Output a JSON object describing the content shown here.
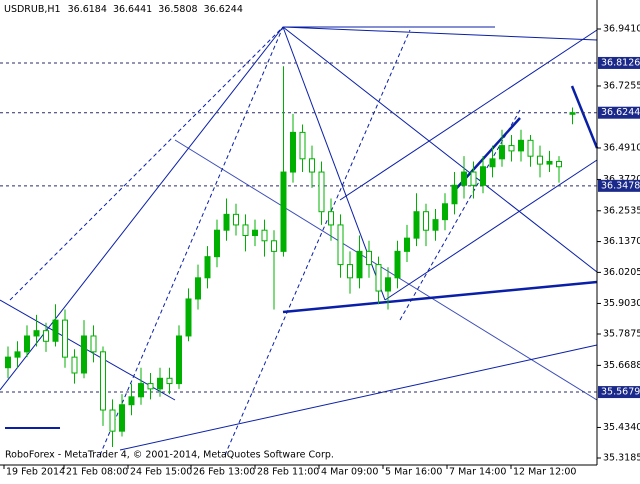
{
  "chart_data": {
    "type": "candlestick",
    "symbol": "USDRUB,H1",
    "quote": [
      36.6184,
      36.6441,
      36.5808,
      36.6244
    ],
    "footer": "RoboForex - MetaTrader 4, © 2001-2014, MetaQuotes Software Corp.",
    "categories": [
      "19 Feb 2014",
      "21 Feb 08:00",
      "24 Feb 15:00",
      "26 Feb 13:00",
      "28 Feb 11:00",
      "4 Mar 09:00",
      "5 Mar 16:00",
      "7 Mar 14:00",
      "12 Mar 12:00"
    ],
    "ylim": [
      35.3185,
      36.941
    ],
    "yticks": [
      {
        "value": 36.941,
        "label": "36.9410"
      },
      36.7255,
      {
        "value": 36.491,
        "label": "36.4910"
      },
      {
        "value": 36.372,
        "label": "36.3720"
      },
      36.2535,
      {
        "value": 36.137,
        "label": "36.1370"
      },
      36.0205,
      {
        "value": 35.903,
        "label": "35.9030"
      },
      35.7875,
      35.6688,
      {
        "value": 35.434,
        "label": "35.4340"
      },
      35.3185
    ],
    "levels": [
      36.8126,
      36.6244,
      36.3478,
      35.5679
    ],
    "up_color": "#00b000",
    "candles": [
      [
        35.66,
        35.74,
        35.62,
        35.7
      ],
      [
        35.7,
        35.76,
        35.66,
        35.72
      ],
      [
        35.72,
        35.82,
        35.7,
        35.78
      ],
      [
        35.78,
        35.86,
        35.74,
        35.8
      ],
      [
        35.8,
        35.83,
        35.72,
        35.76
      ],
      [
        35.76,
        35.9,
        35.74,
        35.84
      ],
      [
        35.84,
        35.88,
        35.66,
        35.7
      ],
      [
        35.7,
        35.73,
        35.6,
        35.64
      ],
      [
        35.64,
        35.84,
        35.62,
        35.78
      ],
      [
        35.78,
        35.82,
        35.68,
        35.72
      ],
      [
        35.72,
        35.74,
        35.44,
        35.5
      ],
      [
        35.5,
        35.54,
        35.36,
        35.42
      ],
      [
        35.42,
        35.56,
        35.4,
        35.52
      ],
      [
        35.52,
        35.6,
        35.48,
        35.55
      ],
      [
        35.55,
        35.66,
        35.52,
        35.6
      ],
      [
        35.6,
        35.64,
        35.54,
        35.58
      ],
      [
        35.58,
        35.66,
        35.55,
        35.62
      ],
      [
        35.62,
        35.66,
        35.56,
        35.6
      ],
      [
        35.6,
        35.82,
        35.58,
        35.78
      ],
      [
        35.78,
        35.96,
        35.76,
        35.92
      ],
      [
        35.92,
        36.05,
        35.88,
        36.0
      ],
      [
        36.0,
        36.12,
        35.96,
        36.08
      ],
      [
        36.08,
        36.22,
        36.04,
        36.18
      ],
      [
        36.18,
        36.3,
        36.14,
        36.24
      ],
      [
        36.24,
        36.28,
        36.16,
        36.2
      ],
      [
        36.2,
        36.24,
        36.1,
        36.16
      ],
      [
        36.16,
        36.22,
        36.12,
        36.18
      ],
      [
        36.18,
        36.22,
        36.08,
        36.14
      ],
      [
        36.14,
        36.18,
        35.88,
        36.1
      ],
      [
        36.1,
        36.8,
        36.08,
        36.4
      ],
      [
        36.4,
        36.62,
        36.36,
        36.55
      ],
      [
        36.55,
        36.58,
        36.4,
        36.45
      ],
      [
        36.45,
        36.5,
        36.34,
        36.4
      ],
      [
        36.4,
        36.44,
        36.2,
        36.25
      ],
      [
        36.25,
        36.3,
        36.14,
        36.2
      ],
      [
        36.2,
        36.24,
        36.0,
        36.05
      ],
      [
        36.05,
        36.1,
        35.94,
        36.0
      ],
      [
        36.0,
        36.16,
        35.96,
        36.1
      ],
      [
        36.1,
        36.14,
        36.0,
        36.05
      ],
      [
        36.05,
        36.08,
        35.9,
        35.95
      ],
      [
        35.95,
        36.04,
        35.88,
        36.0
      ],
      [
        36.0,
        36.14,
        35.96,
        36.1
      ],
      [
        36.1,
        36.2,
        36.06,
        36.15
      ],
      [
        36.15,
        36.32,
        36.12,
        36.25
      ],
      [
        36.25,
        36.28,
        36.12,
        36.18
      ],
      [
        36.18,
        36.26,
        36.14,
        36.22
      ],
      [
        36.22,
        36.32,
        36.18,
        36.28
      ],
      [
        36.28,
        36.4,
        36.24,
        36.35
      ],
      [
        36.35,
        36.46,
        36.3,
        36.4
      ],
      [
        36.4,
        36.44,
        36.3,
        36.35
      ],
      [
        36.35,
        36.46,
        36.32,
        36.42
      ],
      [
        36.42,
        36.5,
        36.38,
        36.45
      ],
      [
        36.45,
        36.56,
        36.42,
        36.5
      ],
      [
        36.5,
        36.54,
        36.44,
        36.48
      ],
      [
        36.48,
        36.56,
        36.44,
        36.52
      ],
      [
        36.52,
        36.54,
        36.42,
        36.46
      ],
      [
        36.46,
        36.5,
        36.38,
        36.43
      ],
      [
        36.43,
        36.48,
        36.4,
        36.44
      ],
      [
        36.44,
        36.46,
        36.36,
        36.42
      ],
      [
        36.6184,
        36.6441,
        36.5808,
        36.6244
      ]
    ]
  }
}
